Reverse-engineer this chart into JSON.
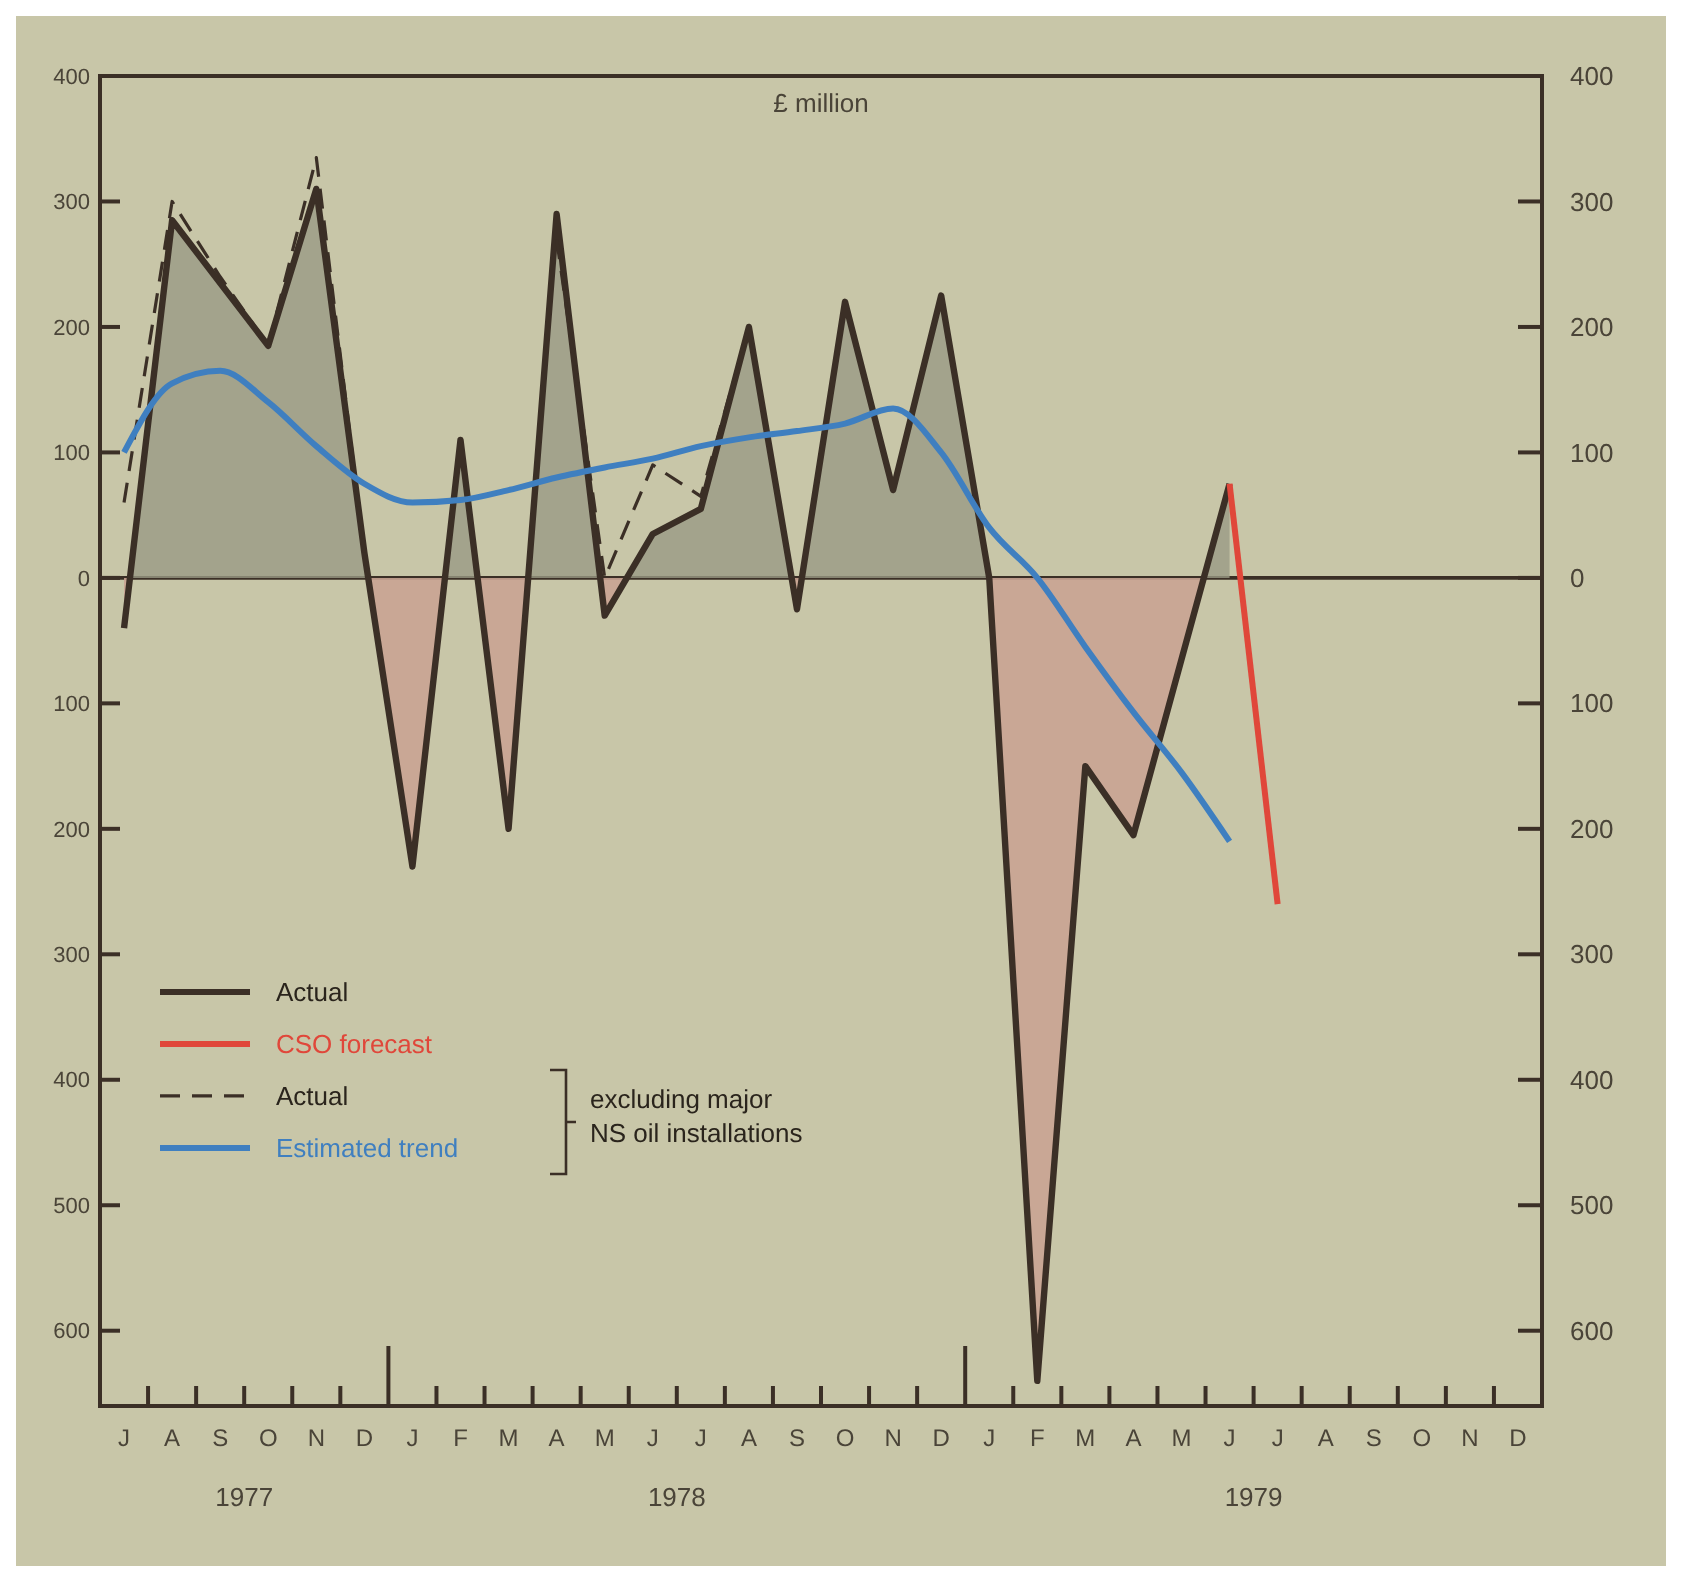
{
  "chart_data": {
    "type": "line",
    "ylabel": "£ million",
    "categories": [
      "J",
      "A",
      "S",
      "O",
      "N",
      "D",
      "J",
      "F",
      "M",
      "A",
      "M",
      "J",
      "J",
      "A",
      "S",
      "O",
      "N",
      "D",
      "J",
      "F",
      "M",
      "A",
      "M",
      "J",
      "J",
      "A",
      "S",
      "O",
      "N",
      "D"
    ],
    "series": [
      {
        "name": "Actual",
        "type": "area",
        "color": "#3b2f26",
        "values": [
          -40,
          285,
          235,
          185,
          310,
          20,
          -230,
          110,
          -200,
          290,
          -30,
          35,
          55,
          200,
          -25,
          220,
          70,
          225,
          0,
          -640,
          -150,
          -205,
          -65,
          75,
          null,
          null,
          null,
          null,
          null,
          null
        ]
      },
      {
        "name": "CSO forecast",
        "color": "#e0473a",
        "values": [
          null,
          null,
          null,
          null,
          null,
          null,
          null,
          null,
          null,
          null,
          null,
          null,
          null,
          null,
          null,
          null,
          null,
          null,
          null,
          null,
          null,
          null,
          null,
          75,
          -260,
          null,
          null,
          null,
          null,
          null
        ]
      },
      {
        "name": "Actual",
        "line_style": "dashed",
        "color": "#3b2f26",
        "values": [
          60,
          300,
          240,
          185,
          335,
          20,
          null,
          null,
          null,
          270,
          0,
          90,
          65,
          200,
          null,
          null,
          null,
          null,
          null,
          null,
          null,
          null,
          null,
          null,
          null,
          null,
          null,
          null,
          null,
          null
        ]
      },
      {
        "name": "Estimated trend",
        "color": "#3f7fc0",
        "values": [
          100,
          155,
          165,
          140,
          105,
          75,
          60,
          62,
          70,
          80,
          88,
          95,
          105,
          112,
          117,
          123,
          135,
          100,
          40,
          0,
          -55,
          -107,
          -155,
          -210,
          null,
          null,
          null,
          null,
          null,
          null
        ]
      }
    ],
    "ylim": [
      -660,
      400
    ],
    "yticks": [
      {
        "value": -600,
        "label": "600"
      },
      {
        "value": -500,
        "label": "500"
      },
      {
        "value": -400,
        "label": "400"
      },
      {
        "value": -300,
        "label": "300"
      },
      {
        "value": -200,
        "label": "200"
      },
      {
        "value": -100,
        "label": "100"
      },
      0,
      100,
      200,
      300,
      400
    ],
    "y2lim": [
      -660,
      400
    ],
    "y2ticks": [
      {
        "value": -600,
        "label": "600"
      },
      {
        "value": -500,
        "label": "500"
      },
      {
        "value": -400,
        "label": "400"
      },
      {
        "value": -300,
        "label": "300"
      },
      {
        "value": -200,
        "label": "200"
      },
      {
        "value": -100,
        "label": "100"
      },
      0,
      100,
      200,
      300,
      400
    ],
    "ref_lines": [
      {
        "axis": "y",
        "value": 0
      }
    ],
    "annotations": [
      "1977",
      "1978",
      "1979",
      "excluding major\nNS oil installations"
    ],
    "legend": "bottom left",
    "grid": false
  }
}
